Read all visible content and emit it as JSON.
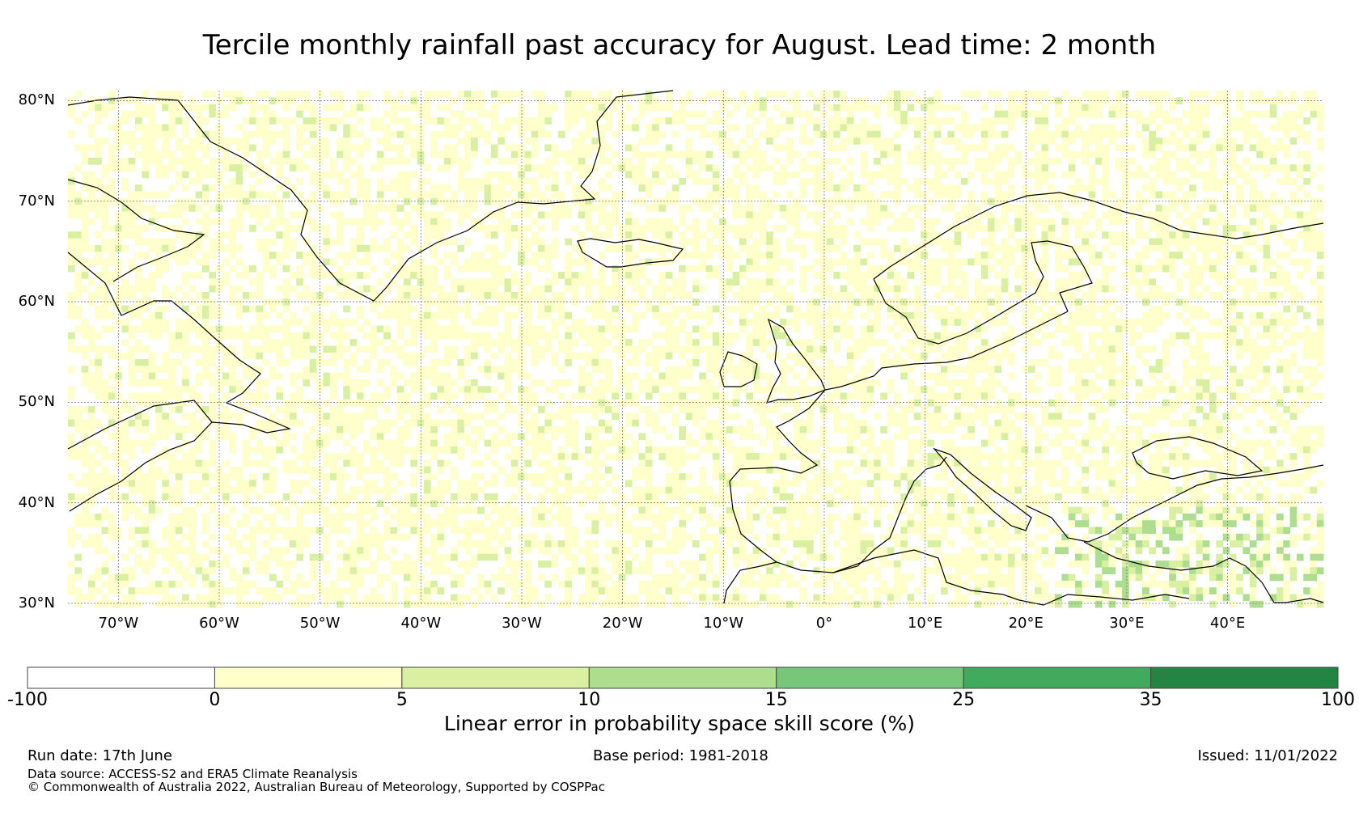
{
  "title": "Tercile monthly rainfall past accuracy for August. Lead time: 2 month",
  "lat_labels": [
    "80°N",
    "70°N",
    "60°N",
    "50°N",
    "40°N",
    "30°N"
  ],
  "lon_labels": [
    "70°W",
    "60°W",
    "50°W",
    "40°W",
    "30°W",
    "20°W",
    "10°W",
    "0°",
    "10°E",
    "20°E",
    "30°E",
    "40°E"
  ],
  "colorbar": {
    "ticks": [
      "-100",
      "0",
      "5",
      "10",
      "15",
      "25",
      "35",
      "100"
    ],
    "colors": [
      "#ffffff",
      "#ffffcc",
      "#d9f0a3",
      "#addd8e",
      "#78c679",
      "#41ab5d",
      "#238443"
    ],
    "label": "Linear error in probability space skill score (%)"
  },
  "footer": {
    "run_date": "Run date: 17th June",
    "base_period": "Base period: 1981-2018",
    "issued": "Issued: 11/01/2022",
    "data_source": "Data source: ACCESS-S2 and ERA5 Climate Reanalysis",
    "copyright": "© Commonwealth of Australia 2022, Australian Bureau of Meteorology, Supported by COSPPac"
  }
}
